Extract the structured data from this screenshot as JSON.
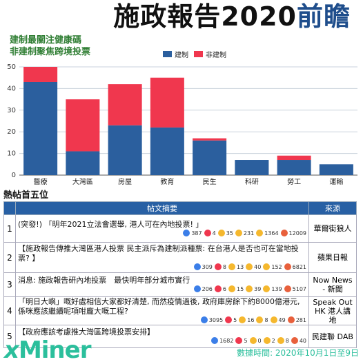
{
  "header": {
    "title_main": "施政報告2020",
    "title_accent": "前瞻"
  },
  "chart_data": {
    "type": "bar",
    "stacked": true,
    "subtitle_line1": "建制最關注健康碼",
    "subtitle_line2": "非建制聚焦跨境投票",
    "categories": [
      "醫療",
      "大灣區",
      "房屋",
      "教育",
      "民生",
      "科研",
      "勞工",
      "運輸"
    ],
    "series": [
      {
        "name": "建制",
        "color": "#2b5f9e",
        "values": [
          43,
          11,
          23,
          22,
          16,
          7,
          7,
          5
        ]
      },
      {
        "name": "非建制",
        "color": "#f0374e",
        "values": [
          7,
          24,
          19,
          23,
          1,
          0,
          2,
          0
        ]
      }
    ],
    "ylim": [
      0,
      50
    ],
    "yticks": [
      0,
      10,
      20,
      30,
      40,
      50
    ],
    "grid": true,
    "legend_position": "top"
  },
  "section": {
    "label": "熱帖首五位"
  },
  "table": {
    "headers": [
      "帖文摘要",
      "來源"
    ],
    "rows": [
      {
        "index": "1",
        "text": "(突發!) 「明年2021立法會選舉, 港人可在內地投票! 」",
        "reactions": {
          "like": "387",
          "love": "4",
          "angry_small": "35",
          "wow": "231",
          "haha": "1364",
          "angry": "12009"
        },
        "source": "華爾街狼人"
      },
      {
        "index": "2",
        "text": "【施政報告傳推大灣區港人投票 民主派斥為建制派種票: 在台港人是否也可在當地投票? 】",
        "reactions": {
          "like": "309",
          "love": "8",
          "angry_small": "13",
          "wow": "40",
          "haha": "152",
          "angry": "6821"
        },
        "source": "蘋果日報"
      },
      {
        "index": "3",
        "text": "消息: 施政報告研內地投票　最快明年部分城市實行",
        "reactions": {
          "like": "206",
          "love": "6",
          "angry_small": "15",
          "wow": "39",
          "haha": "139",
          "angry": "5107"
        },
        "source": "Now News - 新聞"
      },
      {
        "index": "4",
        "text": "「明日大嶼」嘅好處相信大家都好清楚, 而然疫情過後, 政府庫房餘下約8000億港元, 係咪應該繼續呢項咁龐大嘅工程?",
        "reactions": {
          "like": "3095",
          "love": "5",
          "angry_small": "16",
          "wow": "8",
          "haha": "49",
          "angry": "281"
        },
        "source": "Speak Out HK 港人講地"
      },
      {
        "index": "5",
        "text": "【政府應該考慮推大灣區跨境投票安排】",
        "reactions": {
          "like": "1682",
          "love": "5",
          "angry_small": "0",
          "wow": "2",
          "haha": "8",
          "angry": "40"
        },
        "source": "民建聯 DAB"
      }
    ]
  },
  "footer": {
    "logo_x": "x",
    "logo_rest": "Miner",
    "timestamp": "數據時間: 2020年10月1日至9日"
  },
  "colors": {
    "accent": "#1f4e8c",
    "pro_establishment": "#2b5f9e",
    "pro_democracy": "#f0374e",
    "brand": "#2bbf9c",
    "table_header": "#2860a4"
  }
}
